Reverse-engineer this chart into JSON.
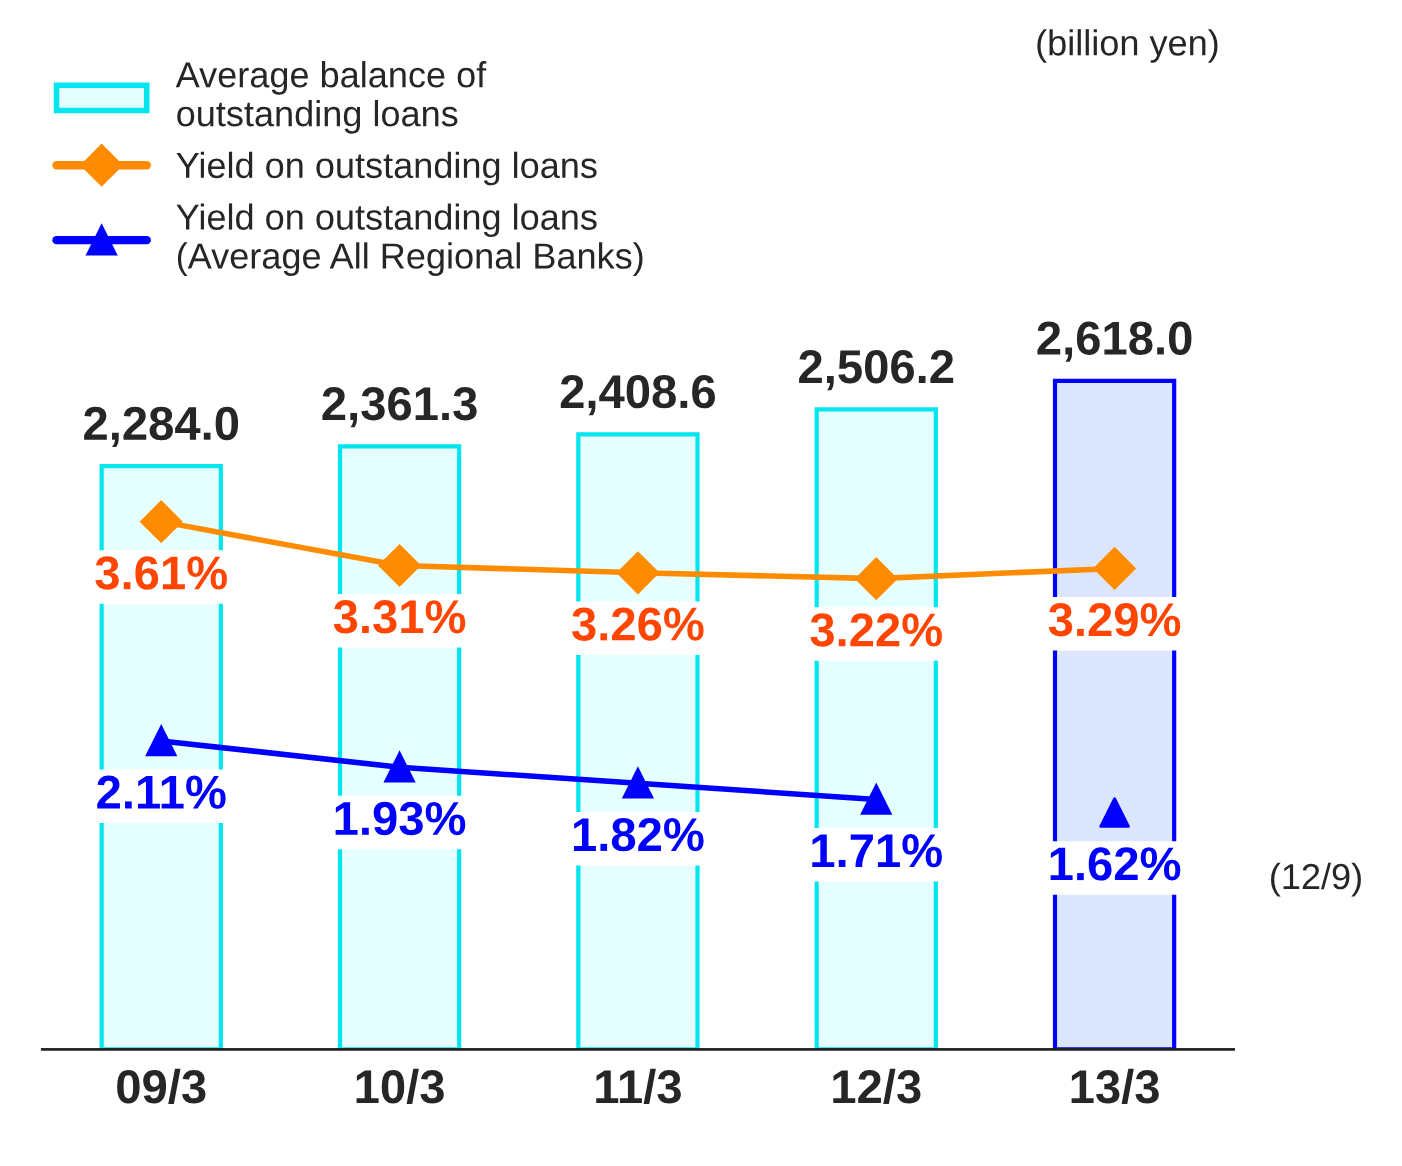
{
  "chart_data": {
    "type": "bar",
    "categories": [
      "09/3",
      "10/3",
      "11/3",
      "12/3",
      "13/3"
    ],
    "series": [
      {
        "name": "Average balance of\noutstanding loans",
        "color": "#e6ffff",
        "colors": [
          "#e6ffff",
          "#e6ffff",
          "#e6ffff",
          "#e6ffff",
          "#dce6ff"
        ],
        "values": [
          2284.0,
          2361.3,
          2408.6,
          2506.2,
          2618.0
        ],
        "value_labels": [
          "2,284.0",
          "2,361.3",
          "2,408.6",
          "2,506.2",
          "2,618.0"
        ]
      },
      {
        "name": "Yield on outstanding loans",
        "type": "line",
        "axis": "y2",
        "color": "#ff8c00",
        "marker": "diamond",
        "values": [
          3.61,
          3.31,
          3.26,
          3.22,
          3.29
        ],
        "value_labels": [
          "3.61%",
          "3.31%",
          "3.26%",
          "3.22%",
          "3.29%"
        ]
      },
      {
        "name": "Yield on outstanding loans\n(Average All Regional Banks)",
        "type": "line",
        "axis": "y2",
        "color": "#0000ff",
        "marker": "triangle",
        "values": [
          2.11,
          1.93,
          1.82,
          1.71,
          null
        ],
        "value_labels": [
          "2.11%",
          "1.93%",
          "1.82%",
          "1.71%",
          null
        ]
      },
      {
        "type": "scatter",
        "axis": "y2",
        "color": "#0000ff",
        "marker": "triangle",
        "values": [
          null,
          null,
          null,
          null,
          1.62
        ],
        "value_labels": [
          null,
          null,
          null,
          null,
          "1.62%"
        ]
      }
    ],
    "tick_labels": "x",
    "grid": false,
    "legend": "top left",
    "annotations": [
      "(billion yen)",
      "(12/9)"
    ]
  }
}
